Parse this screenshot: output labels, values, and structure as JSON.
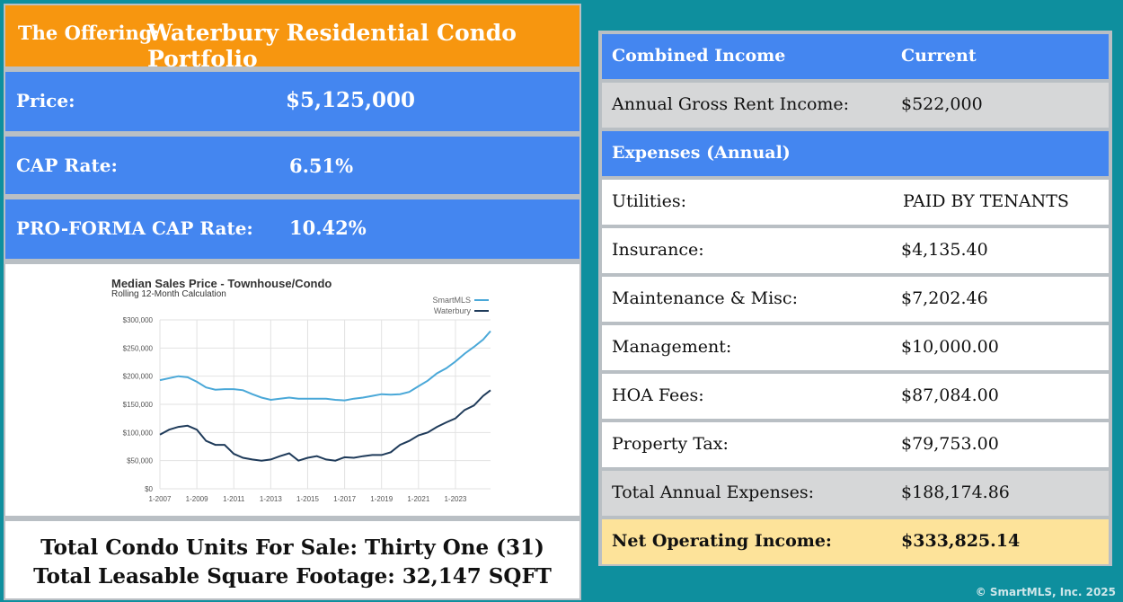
{
  "offering": {
    "label": "The Offering:",
    "title": "Waterbury Residential Condo Portfolio"
  },
  "price": {
    "label": "Price:",
    "value": "$5,125,000"
  },
  "cap_rate": {
    "label": "CAP Rate:",
    "value": "6.51%"
  },
  "proforma": {
    "label": "PRO-FORMA CAP Rate:",
    "value": "10.42%"
  },
  "units": {
    "line1": "Total Condo Units For Sale: Thirty One (31)",
    "line2": "Total Leasable Square Footage: 32,147 SQFT"
  },
  "table": {
    "header": {
      "label": "Combined Income",
      "value": "Current"
    },
    "gross": {
      "label": "Annual Gross Rent Income:",
      "value": "$522,000"
    },
    "expenses_header": {
      "label": "Expenses (Annual)"
    },
    "rows": [
      {
        "label": "Utilities:",
        "value": "PAID BY TENANTS"
      },
      {
        "label": "Insurance:",
        "value": "$4,135.40"
      },
      {
        "label": "Maintenance & Misc:",
        "value": "$7,202.46"
      },
      {
        "label": "Management:",
        "value": "$10,000.00"
      },
      {
        "label": "HOA Fees:",
        "value": "$87,084.00"
      },
      {
        "label": "Property Tax:",
        "value": "$79,753.00"
      }
    ],
    "total": {
      "label": "Total Annual Expenses:",
      "value": "$188,174.86"
    },
    "noi": {
      "label": "Net Operating Income:",
      "value": "$333,825.14"
    }
  },
  "copyright": "© SmartMLS, Inc. 2025",
  "colors": {
    "background": "#0e8f9e",
    "blue": "#4486f0",
    "orange": "#f7960f",
    "noi": "#fde39a"
  },
  "chart_data": {
    "type": "line",
    "title": "Median Sales Price - Townhouse/Condo",
    "subtitle": "Rolling 12-Month Calculation",
    "x_ticks": [
      "1-2007",
      "1-2009",
      "1-2011",
      "1-2013",
      "1-2015",
      "1-2017",
      "1-2019",
      "1-2021",
      "1-2023"
    ],
    "y_ticks": [
      "$0",
      "$50,000",
      "$100,000",
      "$150,000",
      "$200,000",
      "$250,000",
      "$300,000"
    ],
    "ylim": [
      0,
      300000
    ],
    "xlim": [
      2007,
      2024.9
    ],
    "legend_position": "top-right",
    "grid": true,
    "series": [
      {
        "name": "SmartMLS",
        "color": "#4aa8d8",
        "x": [
          2007,
          2008,
          2008.5,
          2009,
          2009.5,
          2010,
          2010.5,
          2011,
          2011.5,
          2012,
          2012.5,
          2013,
          2013.5,
          2014,
          2014.5,
          2015,
          2015.5,
          2016,
          2016.5,
          2017,
          2017.5,
          2018,
          2018.5,
          2019,
          2019.5,
          2020,
          2020.5,
          2021,
          2021.5,
          2022,
          2022.5,
          2023,
          2023.5,
          2024,
          2024.5,
          2024.9
        ],
        "values": [
          193000,
          200000,
          198000,
          190000,
          180000,
          176000,
          177000,
          177000,
          175000,
          168000,
          162000,
          158000,
          160000,
          162000,
          160000,
          160000,
          160000,
          160000,
          158000,
          157000,
          160000,
          162000,
          165000,
          168000,
          167000,
          168000,
          172000,
          182000,
          192000,
          205000,
          214000,
          226000,
          240000,
          252000,
          265000,
          280000
        ]
      },
      {
        "name": "Waterbury",
        "color": "#1f3b5a",
        "x": [
          2007,
          2007.5,
          2008,
          2008.5,
          2009,
          2009.5,
          2010,
          2010.5,
          2011,
          2011.5,
          2012,
          2012.5,
          2013,
          2013.5,
          2014,
          2014.5,
          2015,
          2015.5,
          2016,
          2016.5,
          2017,
          2017.5,
          2018,
          2018.5,
          2019,
          2019.5,
          2020,
          2020.5,
          2021,
          2021.5,
          2022,
          2022.5,
          2023,
          2023.5,
          2024,
          2024.5,
          2024.9
        ],
        "values": [
          96000,
          105000,
          110000,
          112000,
          105000,
          85000,
          78000,
          78000,
          62000,
          55000,
          52000,
          50000,
          52000,
          58000,
          63000,
          50000,
          55000,
          58000,
          52000,
          50000,
          56000,
          55000,
          58000,
          60000,
          60000,
          65000,
          78000,
          85000,
          95000,
          100000,
          110000,
          118000,
          125000,
          140000,
          148000,
          165000,
          175000
        ]
      }
    ]
  }
}
